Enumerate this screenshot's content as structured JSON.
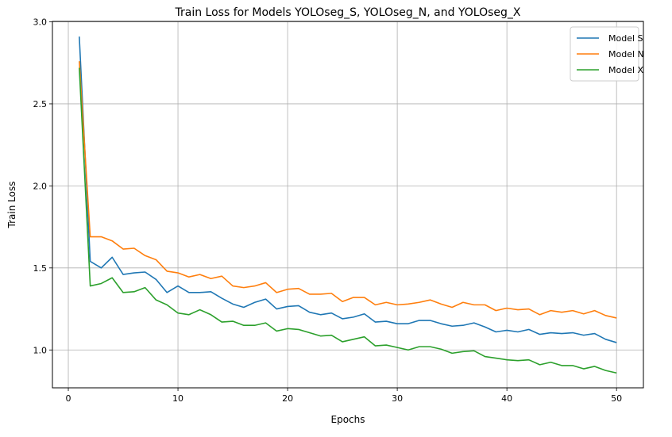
{
  "chart_data": {
    "type": "line",
    "title": "Train Loss for Models YOLOseg_S, YOLOseg_N, and YOLOseg_X",
    "xlabel": "Epochs",
    "ylabel": "Train Loss",
    "xlim": [
      -1.45,
      52.45
    ],
    "ylim": [
      0.7692,
      3.0025
    ],
    "xticks": [
      0,
      10,
      20,
      30,
      40,
      50
    ],
    "yticks": [
      1.0,
      1.5,
      2.0,
      2.5,
      3.0
    ],
    "xtick_labels": [
      "0",
      "10",
      "20",
      "30",
      "40",
      "50"
    ],
    "ytick_labels": [
      "1.0",
      "1.5",
      "2.0",
      "2.5",
      "3.0"
    ],
    "grid": true,
    "legend_position": "top-right",
    "series": [
      {
        "name": "Model S",
        "color": "#1f77b4",
        "x": [
          1,
          2,
          3,
          4,
          5,
          6,
          7,
          8,
          9,
          10,
          11,
          12,
          13,
          14,
          15,
          16,
          17,
          18,
          19,
          20,
          21,
          22,
          23,
          24,
          25,
          26,
          27,
          28,
          29,
          30,
          31,
          32,
          33,
          34,
          35,
          36,
          37,
          38,
          39,
          40,
          41,
          42,
          43,
          44,
          45,
          46,
          47,
          48,
          49,
          50
        ],
        "values": [
          2.91,
          1.54,
          1.5,
          1.565,
          1.46,
          1.47,
          1.475,
          1.43,
          1.35,
          1.39,
          1.35,
          1.35,
          1.355,
          1.315,
          1.28,
          1.26,
          1.29,
          1.31,
          1.25,
          1.265,
          1.27,
          1.23,
          1.215,
          1.225,
          1.19,
          1.2,
          1.22,
          1.17,
          1.175,
          1.16,
          1.16,
          1.18,
          1.18,
          1.16,
          1.145,
          1.15,
          1.165,
          1.14,
          1.11,
          1.12,
          1.11,
          1.125,
          1.095,
          1.105,
          1.1,
          1.105,
          1.09,
          1.1,
          1.065,
          1.045
        ]
      },
      {
        "name": "Model N",
        "color": "#ff7f0e",
        "x": [
          1,
          2,
          3,
          4,
          5,
          6,
          7,
          8,
          9,
          10,
          11,
          12,
          13,
          14,
          15,
          16,
          17,
          18,
          19,
          20,
          21,
          22,
          23,
          24,
          25,
          26,
          27,
          28,
          29,
          30,
          31,
          32,
          33,
          34,
          35,
          36,
          37,
          38,
          39,
          40,
          41,
          42,
          43,
          44,
          45,
          46,
          47,
          48,
          49,
          50
        ],
        "values": [
          2.76,
          1.69,
          1.69,
          1.665,
          1.615,
          1.62,
          1.575,
          1.55,
          1.48,
          1.47,
          1.445,
          1.46,
          1.435,
          1.45,
          1.39,
          1.38,
          1.39,
          1.41,
          1.35,
          1.37,
          1.375,
          1.34,
          1.34,
          1.345,
          1.295,
          1.32,
          1.32,
          1.275,
          1.29,
          1.275,
          1.28,
          1.29,
          1.305,
          1.28,
          1.26,
          1.29,
          1.275,
          1.275,
          1.24,
          1.255,
          1.245,
          1.25,
          1.215,
          1.24,
          1.23,
          1.24,
          1.22,
          1.24,
          1.21,
          1.195
        ]
      },
      {
        "name": "Model X",
        "color": "#2ca02c",
        "x": [
          1,
          2,
          3,
          4,
          5,
          6,
          7,
          8,
          9,
          10,
          11,
          12,
          13,
          14,
          15,
          16,
          17,
          18,
          19,
          20,
          21,
          22,
          23,
          24,
          25,
          26,
          27,
          28,
          29,
          30,
          31,
          32,
          33,
          34,
          35,
          36,
          37,
          38,
          39,
          40,
          41,
          42,
          43,
          44,
          45,
          46,
          47,
          48,
          49,
          50
        ],
        "values": [
          2.72,
          1.39,
          1.405,
          1.44,
          1.35,
          1.355,
          1.38,
          1.305,
          1.275,
          1.225,
          1.215,
          1.245,
          1.215,
          1.17,
          1.175,
          1.15,
          1.15,
          1.165,
          1.115,
          1.13,
          1.125,
          1.105,
          1.085,
          1.09,
          1.05,
          1.065,
          1.08,
          1.025,
          1.03,
          1.015,
          1.0,
          1.02,
          1.02,
          1.005,
          0.98,
          0.99,
          0.995,
          0.96,
          0.95,
          0.94,
          0.935,
          0.94,
          0.91,
          0.925,
          0.905,
          0.905,
          0.885,
          0.9,
          0.875,
          0.86
        ]
      }
    ]
  }
}
